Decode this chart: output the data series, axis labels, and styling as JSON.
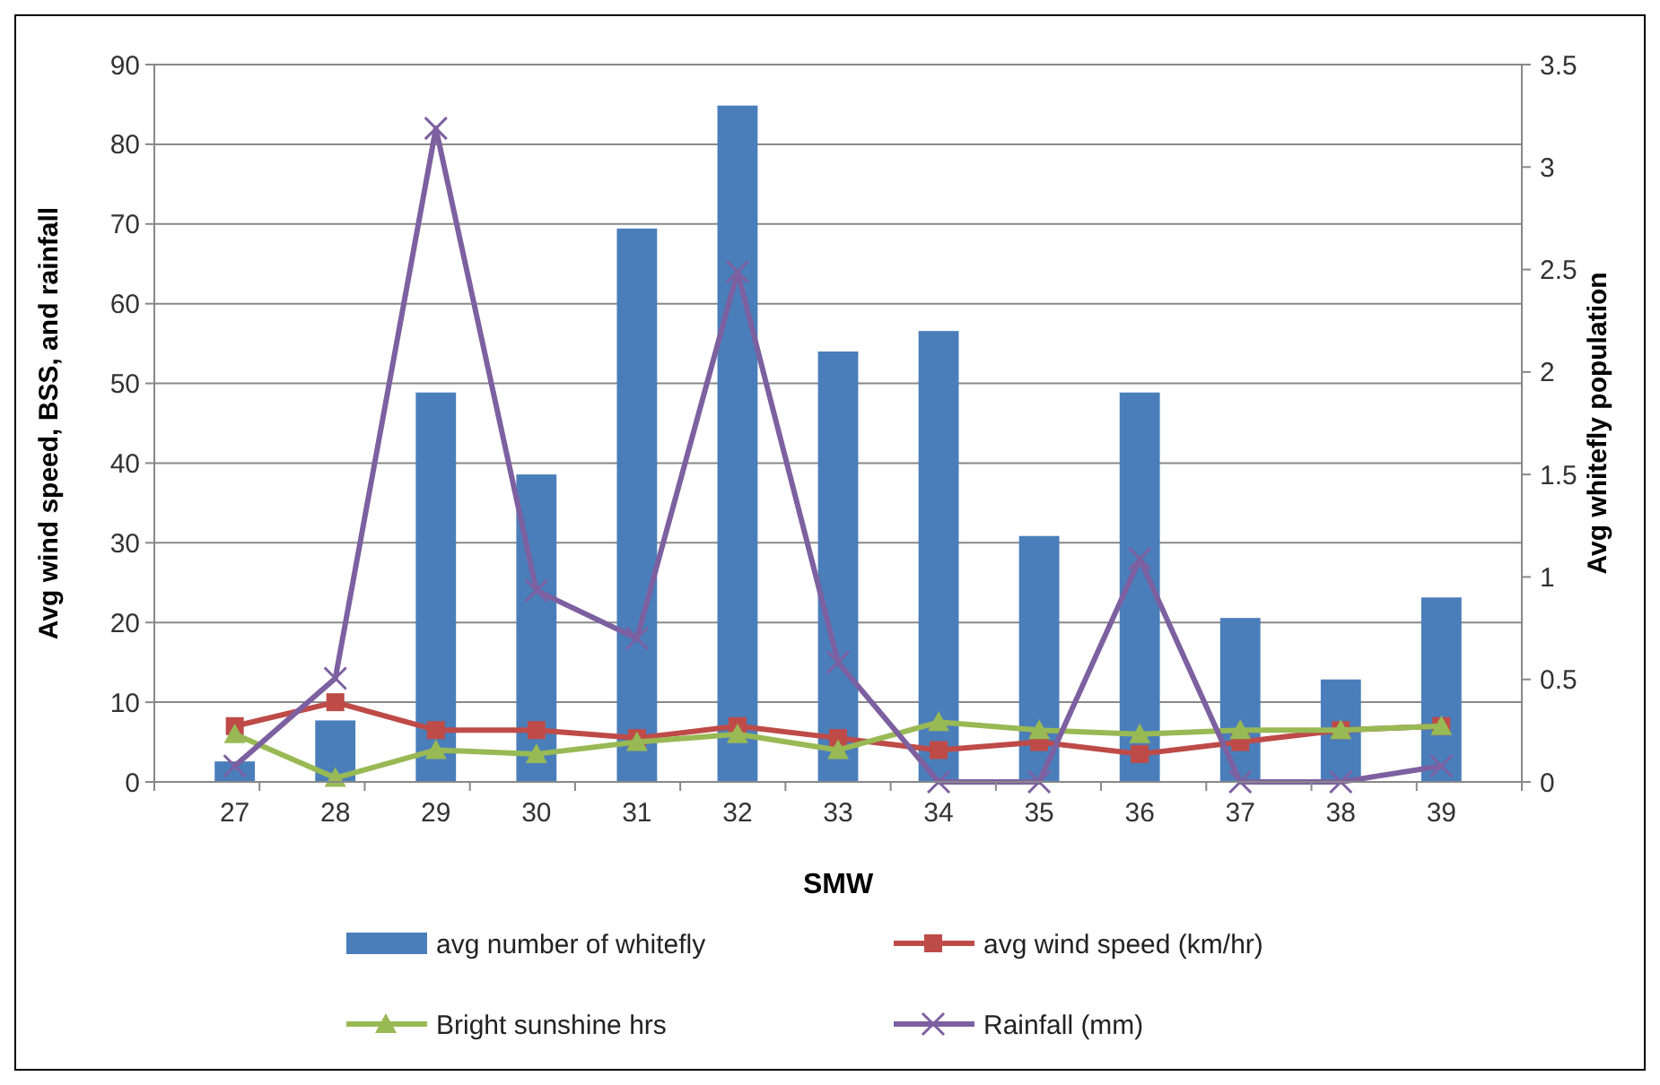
{
  "chart_data": {
    "type": "bar",
    "xlabel": "SMW",
    "ylabel": "Avg wind speed, BSS, and rainfall",
    "y2label": "Avg whitefly population",
    "categories": [
      "27",
      "28",
      "29",
      "30",
      "31",
      "32",
      "33",
      "34",
      "35",
      "36",
      "37",
      "38",
      "39"
    ],
    "series": [
      {
        "name": "avg number of whitefly",
        "axis": "y2",
        "color": "#4a7ebb",
        "values": [
          0.1,
          0.3,
          1.9,
          1.5,
          2.7,
          3.3,
          2.1,
          2.2,
          1.2,
          1.9,
          0.8,
          0.5,
          0.9
        ]
      },
      {
        "name": "avg wind speed (km/hr)",
        "type": "line",
        "color": "#be4b48",
        "marker": "square",
        "values": [
          7,
          10,
          6.5,
          6.5,
          5.5,
          7,
          5.5,
          4,
          5,
          3.5,
          5,
          6.5,
          7
        ]
      },
      {
        "name": "Bright sunshine hrs",
        "type": "line",
        "color": "#98b954",
        "marker": "triangle",
        "values": [
          6,
          0.5,
          4,
          3.5,
          5,
          6,
          4,
          7.5,
          6.5,
          6,
          6.5,
          6.5,
          7
        ]
      },
      {
        "name": "Rainfall (mm)",
        "type": "line",
        "color": "#7d60a0",
        "marker": "cross",
        "values": [
          2,
          13,
          82,
          24,
          18,
          64,
          15,
          0,
          0,
          28,
          0,
          0,
          2
        ]
      }
    ],
    "ylim": [
      0,
      90
    ],
    "yticks": [
      0,
      10,
      20,
      30,
      40,
      50,
      60,
      70,
      80,
      90
    ],
    "y2lim": [
      0,
      3.5
    ],
    "y2ticks": [
      0,
      0.5,
      1,
      1.5,
      2,
      2.5,
      3,
      3.5
    ],
    "grid": "y",
    "legend": "bottom"
  }
}
